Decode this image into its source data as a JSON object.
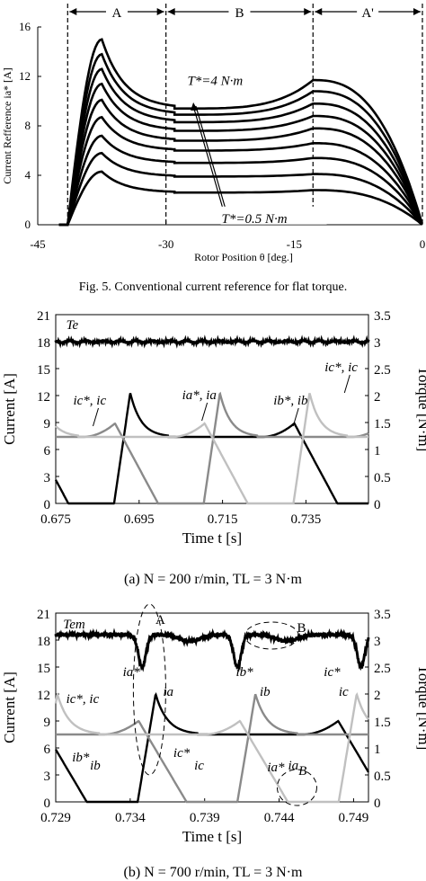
{
  "fig5": {
    "caption": "Fig. 5. Conventional current reference for flat torque.",
    "chart_data": {
      "type": "line",
      "xlabel": "Rotor Position θ [deg.]",
      "ylabel": "Current Refference ia* [A]",
      "xlim": [
        -45,
        0
      ],
      "ylim": [
        0,
        16
      ],
      "xticks": [
        "-45",
        "-30",
        "-15",
        "0"
      ],
      "yticks": [
        "0",
        "4",
        "8",
        "12",
        "16"
      ],
      "regions": [
        "A",
        "B",
        "A'"
      ],
      "annotations": [
        "T*=4 N·m",
        "T*=0.5 N·m"
      ],
      "x_boundaries": [
        -41.5,
        -30,
        -12.8,
        0
      ],
      "series": [
        {
          "peak": 4.3,
          "flat": 2.6,
          "bump": 2.8
        },
        {
          "peak": 5.8,
          "flat": 3.9,
          "bump": 4.1
        },
        {
          "peak": 7.2,
          "flat": 5.0,
          "bump": 5.4
        },
        {
          "peak": 8.7,
          "flat": 6.0,
          "bump": 6.6
        },
        {
          "peak": 10.1,
          "flat": 6.8,
          "bump": 7.8
        },
        {
          "peak": 11.4,
          "flat": 7.6,
          "bump": 8.8
        },
        {
          "peak": 12.6,
          "flat": 8.3,
          "bump": 9.8
        },
        {
          "peak": 13.8,
          "flat": 8.9,
          "bump": 10.8
        },
        {
          "peak": 15.0,
          "flat": 9.4,
          "bump": 11.7
        }
      ]
    }
  },
  "figa": {
    "caption": "(a) N = 200 r/min, TL = 3 N·m",
    "chart_data": {
      "type": "line",
      "xlabel": "Time t [s]",
      "ylabel": "Current [A]",
      "y2label": "Torque [N·m]",
      "xlim": [
        0.675,
        0.75
      ],
      "ylim": [
        0,
        21
      ],
      "y2lim": [
        0,
        3.5
      ],
      "xticks": [
        "0.675",
        "0.695",
        "0.715",
        "0.735"
      ],
      "yticks": [
        "0",
        "3",
        "6",
        "9",
        "12",
        "15",
        "18",
        "21"
      ],
      "y2ticks": [
        "0",
        "0.5",
        "1",
        "1.5",
        "2",
        "2.5",
        "3",
        "3.5"
      ],
      "annotations": [
        "Te",
        "ic*, ic",
        "ia*, ia",
        "ib*, ib",
        "ic*, ic"
      ],
      "torque_value": 3.0,
      "phase_rise_times": [
        0.689,
        0.7105,
        0.732
      ],
      "phase_peak": 12.3,
      "phase_flat": 7.4,
      "phase_bump": 8.9
    }
  },
  "figb": {
    "caption": "(b) N = 700 r/min, TL = 3 N·m",
    "chart_data": {
      "type": "line",
      "xlabel": "Time t [s]",
      "ylabel": "Current [A]",
      "y2label": "Torque [N·m]",
      "xlim": [
        0.729,
        0.75
      ],
      "ylim": [
        0,
        21
      ],
      "y2lim": [
        0,
        3.5
      ],
      "xticks": [
        "0.729",
        "0.734",
        "0.739",
        "0.744",
        "0.749"
      ],
      "yticks": [
        "0",
        "3",
        "6",
        "9",
        "12",
        "15",
        "18",
        "21"
      ],
      "y2ticks": [
        "0",
        "0.5",
        "1",
        "1.5",
        "2",
        "2.5",
        "3",
        "3.5"
      ],
      "annotations": [
        "Tem",
        "A",
        "B",
        "ia*",
        "ia",
        "ib*",
        "ib",
        "ic*",
        "ic",
        "ic*, ic",
        "ib*",
        "ib",
        "ic*",
        "ic",
        "ia*",
        "ia",
        "B"
      ],
      "torque_value": 3.1,
      "torque_dips": [
        0.7348,
        0.7412,
        0.7495
      ],
      "phase_rise_times": [
        0.7345,
        0.7412,
        0.748
      ],
      "phase_peak": 12.0,
      "phase_flat": 7.5,
      "phase_bump": 9.0
    }
  }
}
